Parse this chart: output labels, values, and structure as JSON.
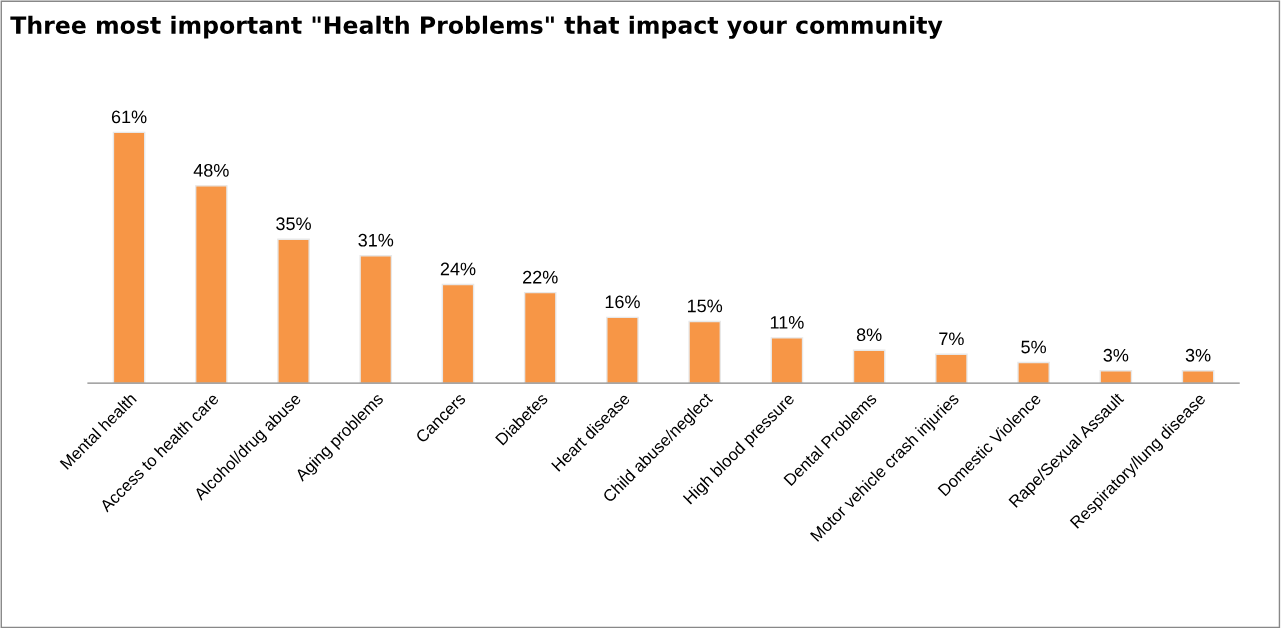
{
  "chart_data": {
    "type": "bar",
    "title": "Three most important \"Health Problems\" that impact your community",
    "categories": [
      "Mental health",
      "Access to health care",
      "Alcohol/drug abuse",
      "Aging problems",
      "Cancers",
      "Diabetes",
      "Heart disease",
      "Child abuse/neglect",
      "High blood pressure",
      "Dental Problems",
      "Motor vehicle crash injuries",
      "Domestic Violence",
      "Rape/Sexual Assault",
      "Respiratory/lung disease"
    ],
    "values": [
      61,
      48,
      35,
      31,
      24,
      22,
      16,
      15,
      11,
      8,
      7,
      5,
      3,
      3
    ],
    "value_labels": [
      "61%",
      "48%",
      "35%",
      "31%",
      "24%",
      "22%",
      "16%",
      "15%",
      "11%",
      "8%",
      "7%",
      "5%",
      "3%",
      "3%"
    ],
    "color": "#f79646",
    "grid": false,
    "legend": false
  }
}
